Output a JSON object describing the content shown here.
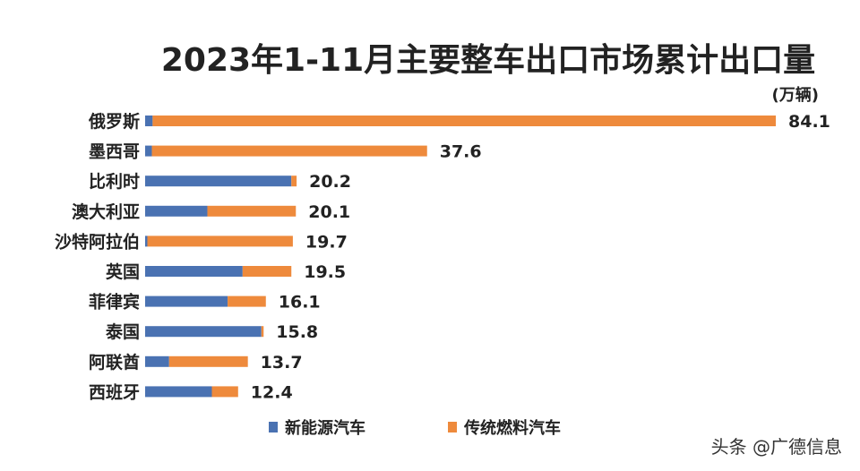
{
  "watermark": "头条 @广德信息",
  "chart_data": {
    "type": "bar",
    "orientation": "horizontal",
    "stacked": true,
    "title": "2023年1-11月主要整车出口市场累计出口量",
    "unit": "(万辆)",
    "categories": [
      "俄罗斯",
      "墨西哥",
      "比利时",
      "澳大利亚",
      "沙特阿拉伯",
      "英国",
      "菲律宾",
      "泰国",
      "阿联酋",
      "西班牙"
    ],
    "totals": [
      84.1,
      37.6,
      20.2,
      20.1,
      19.7,
      19.5,
      16.1,
      15.8,
      13.7,
      12.4
    ],
    "series": [
      {
        "name": "新能源汽车",
        "color": "#4a72b2",
        "values": [
          1.0,
          0.9,
          19.5,
          8.3,
          0.3,
          13.0,
          11.0,
          15.5,
          3.2,
          8.9
        ]
      },
      {
        "name": "传统燃料汽车",
        "color": "#ee8a3c",
        "values": [
          83.1,
          36.7,
          0.7,
          11.8,
          19.4,
          6.5,
          5.1,
          0.3,
          10.5,
          3.5
        ]
      }
    ],
    "xlim": [
      0,
      84.1
    ],
    "legend_position": "bottom",
    "grid": false
  }
}
